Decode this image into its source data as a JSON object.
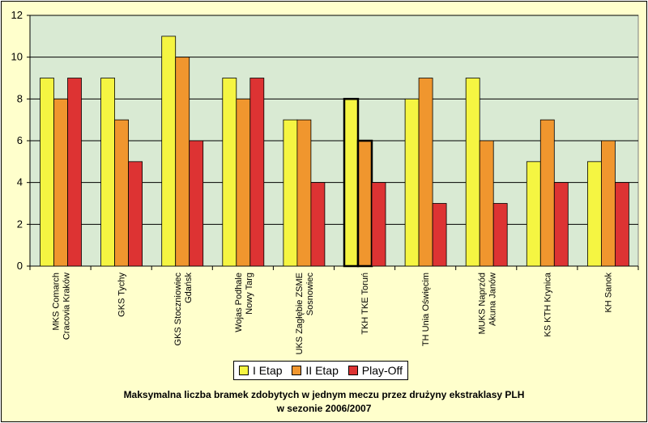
{
  "chart_data": {
    "type": "bar",
    "title_line1": "Maksymalna liczba bramek zdobytych w jednym meczu przez drużyny ekstraklasy PLH",
    "title_line2": "w sezonie 2006/2007",
    "categories": [
      [
        "MKS Comarch",
        "Cracovia Kraków"
      ],
      [
        "GKS Tychy"
      ],
      [
        "GKS Stoczniowiec",
        "Gdańsk"
      ],
      [
        "Wojas Podhale",
        "Nowy Targ"
      ],
      [
        "UKS Zagłębie ZSME",
        "Sosnowiec"
      ],
      [
        "TKH TKE Toruń"
      ],
      [
        "TH Unia Oświęcim"
      ],
      [
        "MUKS Naprzód",
        "Akuna Janów"
      ],
      [
        "KS KTH Krynica"
      ],
      [
        "KH Sanok"
      ]
    ],
    "series": [
      {
        "name": "I Etap",
        "color": "#f5f542",
        "values": [
          9,
          9,
          11,
          9,
          7,
          8,
          8,
          9,
          5,
          5
        ]
      },
      {
        "name": "II Etap",
        "color": "#f0962e",
        "values": [
          8,
          7,
          10,
          8,
          7,
          6,
          9,
          6,
          7,
          6
        ]
      },
      {
        "name": "Play-Off",
        "color": "#dd3333",
        "values": [
          9,
          5,
          6,
          9,
          4,
          4,
          3,
          3,
          4,
          4
        ]
      }
    ],
    "highlighted_category": 5,
    "ylim": [
      0,
      12
    ],
    "yticks": [
      "0",
      "2",
      "4",
      "6",
      "8",
      "10",
      "12"
    ],
    "grid": true,
    "plot_background": "#d9ead3",
    "legend_position": "bottom"
  }
}
